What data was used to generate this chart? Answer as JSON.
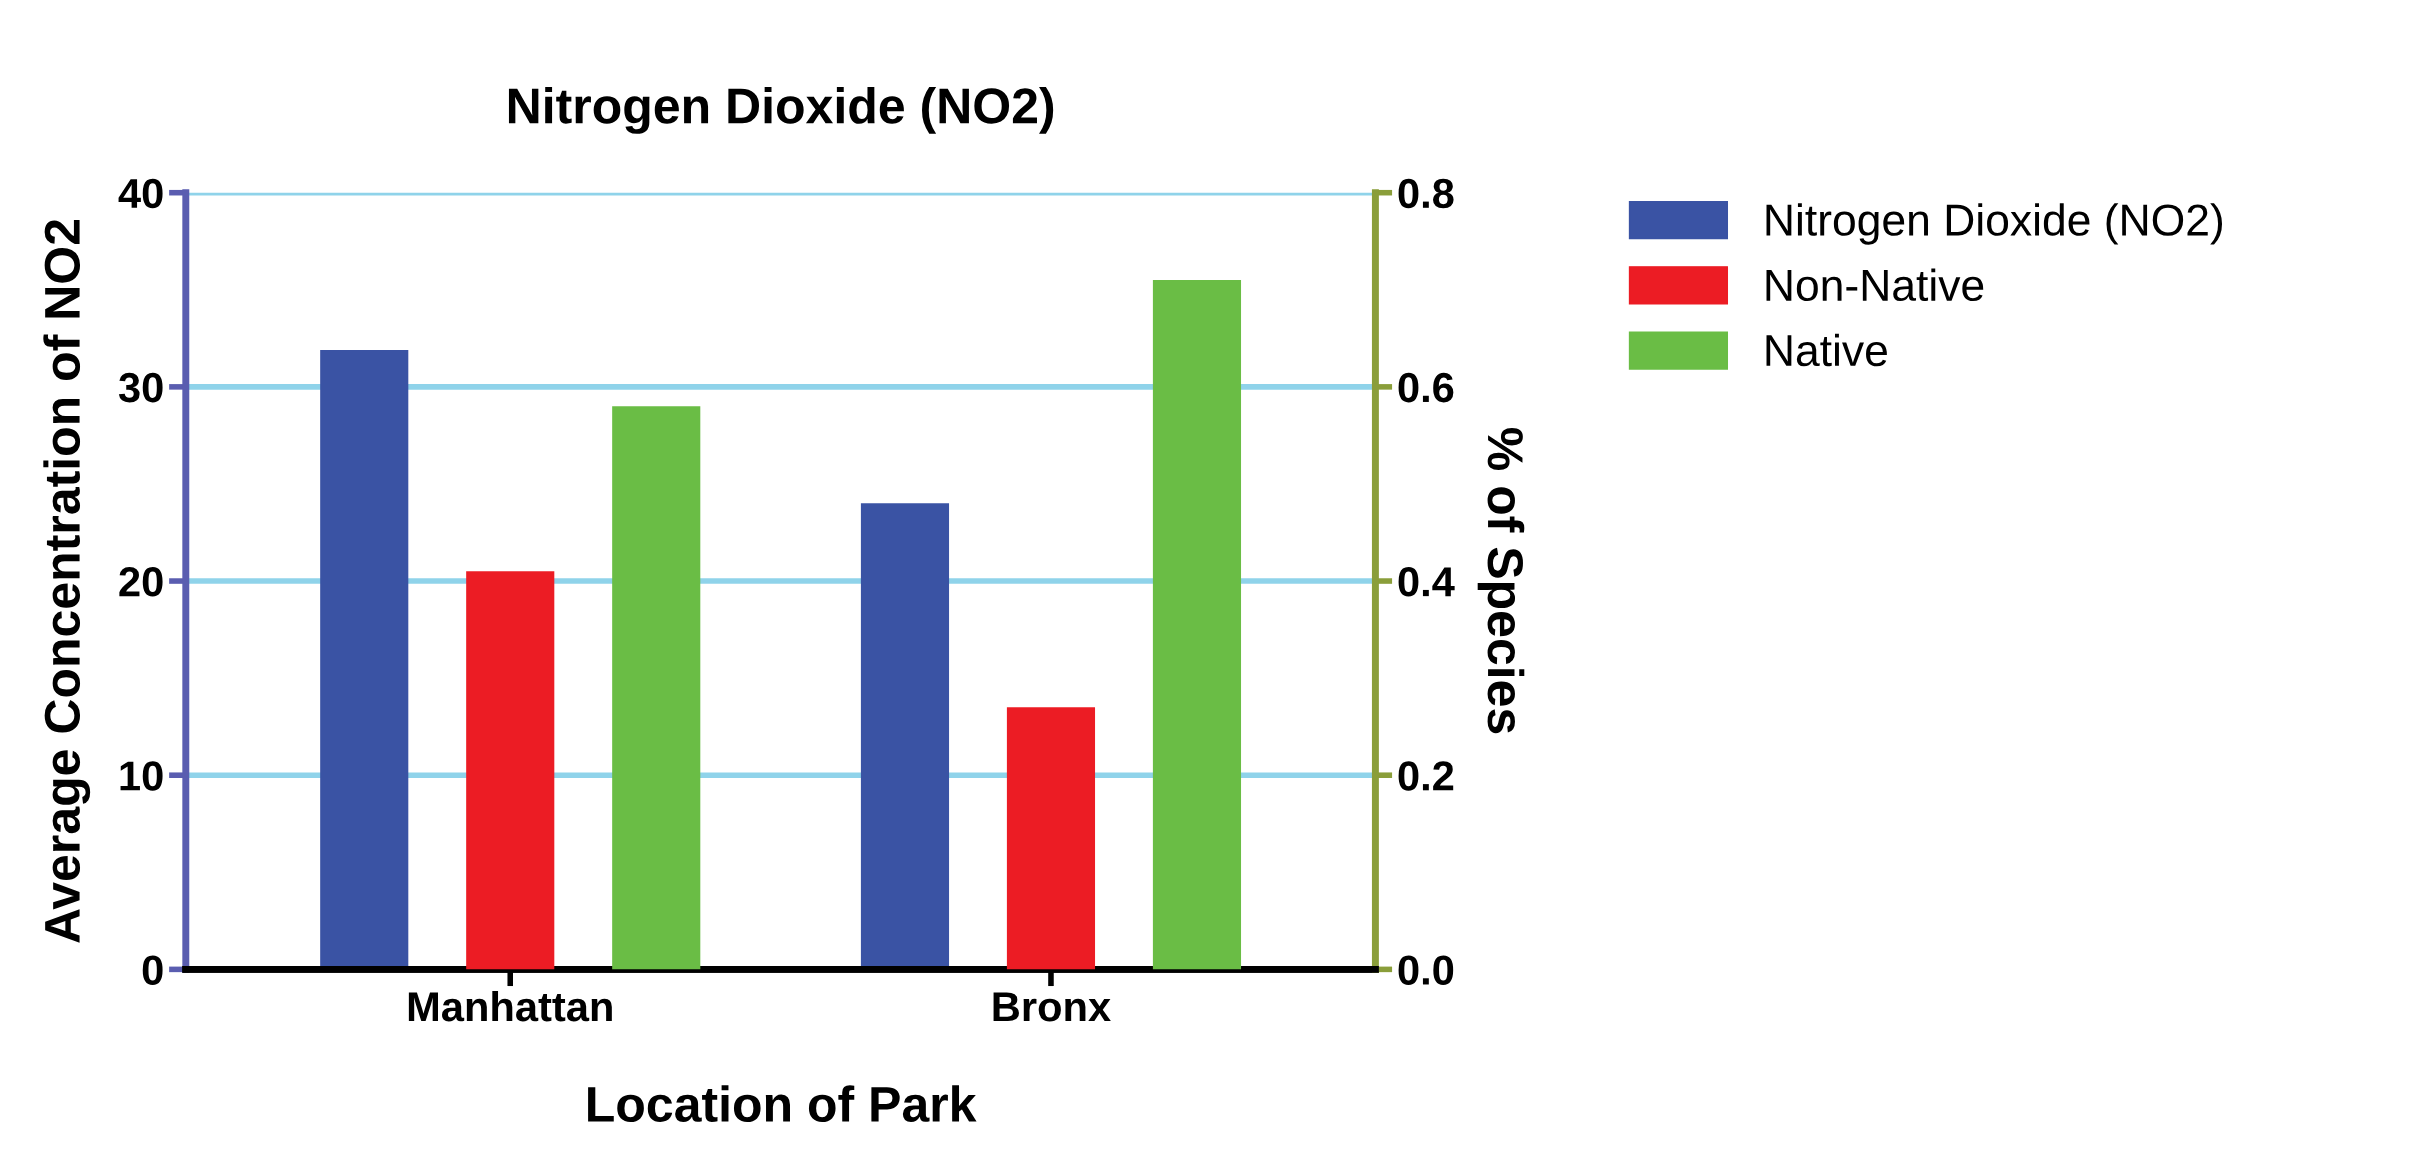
{
  "chart_data": {
    "type": "bar",
    "title": "Nitrogen Dioxide (NO2)",
    "xlabel": "Location of Park",
    "ylabel": "Average Concentration of NO2",
    "y2label": "% of Species",
    "categories": [
      "Manhattan",
      "Bronx"
    ],
    "series": [
      {
        "name": "Nitrogen Dioxide (NO2)",
        "color": "#3a53a4",
        "values": [
          31.9,
          24.0
        ]
      },
      {
        "name": "Non-Native",
        "color": "#ec1c24",
        "values": [
          0.41,
          0.27
        ],
        "axis": "y2"
      },
      {
        "name": "Native",
        "color": "#6abd45",
        "values": [
          0.58,
          0.71
        ],
        "axis": "y2"
      }
    ],
    "ylim": [
      0,
      40
    ],
    "yticks": [
      0,
      10,
      20,
      30,
      40
    ],
    "y2lim": [
      0,
      0.8
    ],
    "y2ticks": [
      {
        "value": 0,
        "label": "0.0"
      },
      0.2,
      0.4,
      0.6,
      0.8
    ],
    "grid": "y",
    "legend": "top right"
  }
}
